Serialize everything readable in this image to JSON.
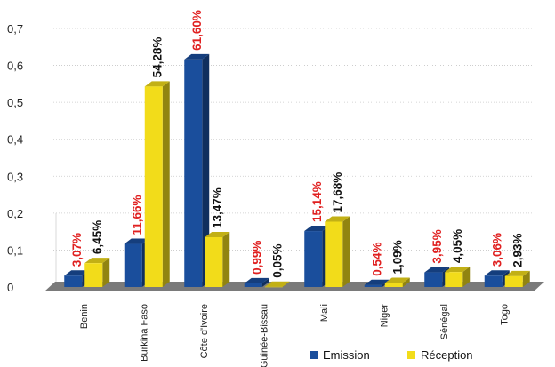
{
  "chart_data": {
    "type": "bar",
    "categories": [
      "Benin",
      "Burkina Faso",
      "Côte d'Ivoire",
      "Guinée-Bissau",
      "Mali",
      "Niger",
      "Sénégal",
      "Togo"
    ],
    "series": [
      {
        "name": "Emission",
        "color": "#1a4e9c",
        "label_color": "#e02020",
        "values": [
          0.0307,
          0.1166,
          0.616,
          0.0099,
          0.1514,
          0.0054,
          0.0395,
          0.0306
        ],
        "labels": [
          "3,07%",
          "11,66%",
          "61,60%",
          "0,99%",
          "15,14%",
          "0,54%",
          "3,95%",
          "3,06%"
        ]
      },
      {
        "name": "Réception",
        "color": "#f2dc1a",
        "label_color": "#111111",
        "values": [
          0.0645,
          0.5428,
          0.1347,
          0.0005,
          0.1768,
          0.0109,
          0.0405,
          0.0293
        ],
        "labels": [
          "6,45%",
          "54,28%",
          "13,47%",
          "0,05%",
          "17,68%",
          "1,09%",
          "4,05%",
          "2,93%"
        ]
      }
    ],
    "yticks": [
      "0",
      "0,1",
      "0,2",
      "0,3",
      "0,4",
      "0,5",
      "0,6",
      "0,7"
    ],
    "ylim": [
      0,
      0.7
    ],
    "grid": true,
    "legend": "bottom-right"
  }
}
